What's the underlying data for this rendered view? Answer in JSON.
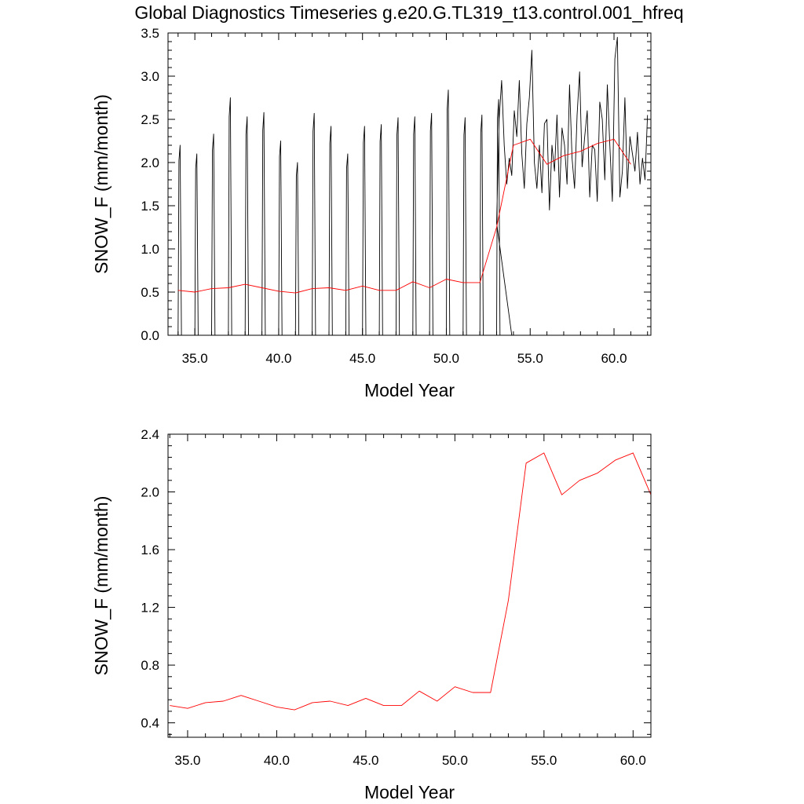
{
  "title": "Global Diagnostics Timeseries g.e20.G.TL319_t13.control.001_hfreq",
  "colors": {
    "monthly": "#000000",
    "annual": "#ff0000"
  },
  "chart_data": [
    {
      "type": "line",
      "xlabel": "Model Year",
      "ylabel": "SNOW_F (mm/month)",
      "xlim": [
        33.4,
        62.2
      ],
      "ylim": [
        0,
        3.5
      ],
      "xticks": [
        35,
        40,
        45,
        50,
        55,
        60
      ],
      "xtick_labels": [
        "35.0",
        "40.0",
        "45.0",
        "50.0",
        "55.0",
        "60.0"
      ],
      "yticks": [
        0,
        0.5,
        1,
        1.5,
        2,
        2.5,
        3,
        3.5
      ],
      "ytick_labels": [
        "0.0",
        "0.5",
        "1.0",
        "1.5",
        "2.0",
        "2.5",
        "3.0",
        "3.5"
      ],
      "grid": false,
      "series": [
        {
          "color": "#000000",
          "monthly_peaks": [
            2.2,
            2.1,
            2.33,
            2.75,
            2.53,
            2.58,
            2.25,
            2.0,
            2.57,
            2.42,
            2.1,
            2.42,
            2.44,
            2.52,
            2.53,
            2.57,
            2.84,
            2.52,
            2.55,
            2.73
          ],
          "monthly_start_year": 34,
          "x": [
            53.0,
            53.15,
            53.3,
            53.45,
            53.6,
            53.75,
            53.9,
            54.05,
            54.2,
            54.35,
            54.5,
            54.65,
            54.8,
            54.95,
            55.1,
            55.25,
            55.4,
            55.55,
            55.7,
            55.85,
            56.0,
            56.15,
            56.3,
            56.45,
            56.6,
            56.75,
            56.9,
            57.05,
            57.2,
            57.35,
            57.5,
            57.65,
            57.8,
            57.95,
            58.1,
            58.25,
            58.4,
            58.55,
            58.7,
            58.85,
            59.0,
            59.15,
            59.3,
            59.45,
            59.6,
            59.75,
            59.9,
            60.05,
            60.2,
            60.35,
            60.5,
            60.65,
            60.8,
            60.95,
            61.1,
            61.25,
            61.4,
            61.55,
            61.7,
            61.85,
            62.0
          ],
          "y": [
            1.3,
            2.5,
            2.95,
            2.2,
            1.75,
            2.05,
            1.85,
            2.6,
            2.3,
            2.95,
            2.1,
            1.7,
            2.45,
            2.75,
            3.3,
            2.0,
            1.7,
            2.2,
            1.65,
            2.45,
            2.5,
            1.45,
            2.2,
            1.9,
            2.55,
            1.6,
            2.4,
            2.2,
            1.75,
            2.9,
            2.05,
            1.7,
            2.55,
            3.05,
            1.95,
            2.3,
            2.6,
            1.6,
            2.2,
            2.15,
            1.55,
            2.7,
            2.5,
            1.8,
            2.9,
            2.2,
            1.55,
            3.2,
            3.45,
            1.6,
            1.9,
            2.75,
            1.7,
            2.3,
            2.1,
            1.9,
            2.35,
            1.75,
            2.05,
            1.8,
            2.55
          ]
        },
        {
          "color": "#ff0000",
          "x": [
            34,
            35,
            36,
            37,
            38,
            39,
            40,
            41,
            42,
            43,
            44,
            45,
            46,
            47,
            48,
            49,
            50,
            51,
            52,
            53,
            54,
            55,
            56,
            57,
            58,
            59,
            60,
            61
          ],
          "y": [
            0.52,
            0.5,
            0.54,
            0.55,
            0.59,
            0.55,
            0.51,
            0.49,
            0.54,
            0.55,
            0.52,
            0.57,
            0.52,
            0.52,
            0.62,
            0.55,
            0.65,
            0.61,
            0.61,
            1.25,
            2.2,
            2.27,
            1.98,
            2.08,
            2.13,
            2.22,
            2.27,
            1.98
          ]
        }
      ]
    },
    {
      "type": "line",
      "xlabel": "Model Year",
      "ylabel": "SNOW_F (mm/month)",
      "xlim": [
        33.9,
        61.0
      ],
      "ylim": [
        0.3,
        2.4
      ],
      "xticks": [
        35,
        40,
        45,
        50,
        55,
        60
      ],
      "xtick_labels": [
        "35.0",
        "40.0",
        "45.0",
        "50.0",
        "55.0",
        "60.0"
      ],
      "yticks": [
        0.4,
        0.8,
        1.2,
        1.6,
        2.0,
        2.4
      ],
      "ytick_labels": [
        "0.4",
        "0.8",
        "1.2",
        "1.6",
        "2.0",
        "2.4"
      ],
      "grid": false,
      "series": [
        {
          "color": "#ff0000",
          "x": [
            34,
            35,
            36,
            37,
            38,
            39,
            40,
            41,
            42,
            43,
            44,
            45,
            46,
            47,
            48,
            49,
            50,
            51,
            52,
            53,
            54,
            55,
            56,
            57,
            58,
            59,
            60,
            61
          ],
          "y": [
            0.52,
            0.5,
            0.54,
            0.55,
            0.59,
            0.55,
            0.51,
            0.49,
            0.54,
            0.55,
            0.52,
            0.57,
            0.52,
            0.52,
            0.62,
            0.55,
            0.65,
            0.61,
            0.61,
            1.25,
            2.2,
            2.27,
            1.98,
            2.08,
            2.13,
            2.22,
            2.27,
            1.98
          ]
        }
      ]
    }
  ]
}
